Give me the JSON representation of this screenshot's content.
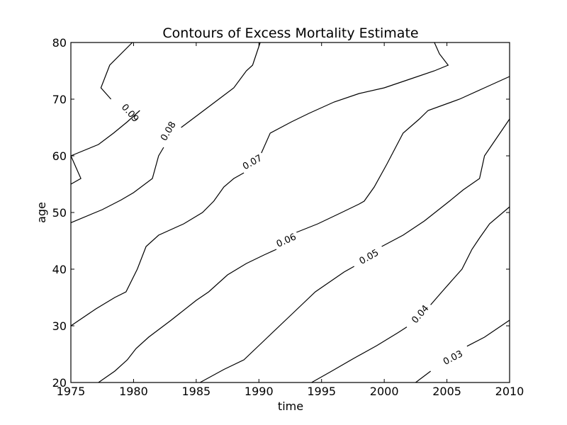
{
  "chart_data": {
    "type": "contour",
    "title": "Contours of Excess Mortality Estimate",
    "xlabel": "time",
    "ylabel": "age",
    "xlim": [
      1975,
      2010
    ],
    "ylim": [
      20,
      80
    ],
    "xticks": [
      1975,
      1980,
      1985,
      1990,
      1995,
      2000,
      2005,
      2010
    ],
    "yticks": [
      20,
      30,
      40,
      50,
      60,
      70,
      80
    ],
    "grid": false,
    "line_color": "#000000",
    "contours": [
      {
        "level": "0.09",
        "segments": [
          [
            [
              1975,
              55
            ],
            [
              1975.8,
              56
            ],
            [
              1975,
              60
            ]
          ],
          [
            [
              1979.9,
              80
            ],
            [
              1978.1,
              76
            ],
            [
              1977.4,
              72
            ],
            [
              1978.2,
              70
            ]
          ]
        ],
        "label_at": [
          1979.7,
          67.5
        ]
      },
      {
        "level": "0.08",
        "segments": [
          [
            [
              1975,
              60
            ],
            [
              1977.2,
              62
            ],
            [
              1978.4,
              64
            ],
            [
              1979.5,
              66
            ],
            [
              1980.5,
              68
            ]
          ],
          [
            [
              1983.8,
              65
            ],
            [
              1985,
              67
            ],
            [
              1986.8,
              70
            ],
            [
              1988,
              72
            ],
            [
              1989,
              75
            ],
            [
              1989.5,
              76
            ],
            [
              1990.1,
              80
            ]
          ],
          [
            [
              1975,
              48.2
            ],
            [
              1977.5,
              50.5
            ],
            [
              1979,
              52.2
            ],
            [
              1980,
              53.5
            ],
            [
              1981.5,
              56
            ],
            [
              1982,
              60
            ],
            [
              1982.4,
              61.5
            ]
          ]
        ],
        "label_at": [
          1982.8,
          64.3
        ]
      },
      {
        "level": "0.07",
        "segments": [
          [
            [
              1975,
              30
            ],
            [
              1977,
              33
            ],
            [
              1978.5,
              35
            ],
            [
              1979.4,
              36
            ],
            [
              1980.3,
              40
            ],
            [
              1981,
              44
            ],
            [
              1982,
              46
            ],
            [
              1984,
              48
            ],
            [
              1985.5,
              50
            ],
            [
              1986.4,
              52
            ],
            [
              1987.2,
              54.5
            ],
            [
              1988,
              56
            ],
            [
              1988.8,
              57
            ]
          ],
          [
            [
              1990.2,
              60.5
            ],
            [
              1990.9,
              64
            ],
            [
              1992.6,
              66
            ],
            [
              1994,
              67.5
            ],
            [
              1996,
              69.5
            ],
            [
              1998,
              71
            ],
            [
              2000,
              72
            ],
            [
              2002,
              73.5
            ],
            [
              2004,
              75
            ],
            [
              2005.1,
              76
            ],
            [
              2004.4,
              78
            ],
            [
              2004,
              80
            ]
          ]
        ],
        "label_at": [
          1989.5,
          58.8
        ]
      },
      {
        "level": "0.06",
        "segments": [
          [
            [
              1977.2,
              20
            ],
            [
              1978.5,
              22
            ],
            [
              1979.5,
              24
            ],
            [
              1980.2,
              26
            ],
            [
              1981.2,
              28
            ],
            [
              1983,
              31
            ],
            [
              1985,
              34.5
            ],
            [
              1986,
              36
            ],
            [
              1987.5,
              39
            ],
            [
              1989,
              41
            ],
            [
              1990.4,
              42.5
            ],
            [
              1991.4,
              43.5
            ]
          ],
          [
            [
              1993,
              46.5
            ],
            [
              1994.7,
              48
            ],
            [
              1996.6,
              50
            ],
            [
              1998,
              51.5
            ],
            [
              1998.4,
              52
            ],
            [
              1999.2,
              54.5
            ],
            [
              2000.2,
              58.5
            ],
            [
              2001.5,
              64
            ],
            [
              2002.8,
              66.5
            ],
            [
              2003.5,
              68
            ],
            [
              2006,
              70
            ],
            [
              2008,
              72
            ],
            [
              2010,
              74
            ]
          ]
        ],
        "label_at": [
          1992.2,
          45
        ]
      },
      {
        "level": "0.05",
        "segments": [
          [
            [
              1985.3,
              20
            ],
            [
              1987.2,
              22.3
            ],
            [
              1988.8,
              24
            ],
            [
              1990.7,
              28
            ],
            [
              1992.6,
              32
            ],
            [
              1994.5,
              36
            ],
            [
              1996.8,
              39.5
            ],
            [
              1997.6,
              40.5
            ]
          ],
          [
            [
              1999.8,
              44
            ],
            [
              2001.5,
              46
            ],
            [
              2003.2,
              48.5
            ],
            [
              2005.2,
              52
            ],
            [
              2006.3,
              54
            ],
            [
              2007.6,
              56
            ],
            [
              2008,
              60
            ],
            [
              2010,
              66.5
            ]
          ]
        ],
        "label_at": [
          1998.8,
          42.1
        ]
      },
      {
        "level": "0.04",
        "segments": [
          [
            [
              1994.2,
              20
            ],
            [
              1995.8,
              22
            ],
            [
              1997.6,
              24.3
            ],
            [
              1999.4,
              26.5
            ],
            [
              2001.1,
              28.8
            ],
            [
              2001.8,
              29.8
            ]
          ],
          [
            [
              2003.7,
              33.7
            ],
            [
              2004.6,
              36
            ],
            [
              2005.4,
              38
            ],
            [
              2006.2,
              40
            ],
            [
              2007,
              43.5
            ],
            [
              2007.6,
              45.5
            ],
            [
              2008.4,
              48
            ],
            [
              2010,
              51
            ]
          ]
        ],
        "label_at": [
          2002.9,
          32
        ]
      },
      {
        "level": "0.03",
        "segments": [
          [
            [
              2002.5,
              20
            ],
            [
              2003.7,
              22
            ]
          ],
          [
            [
              2006.6,
              26.4
            ],
            [
              2008,
              28
            ],
            [
              2010,
              31
            ]
          ]
        ],
        "label_at": [
          2005.5,
          24.3
        ]
      }
    ]
  }
}
